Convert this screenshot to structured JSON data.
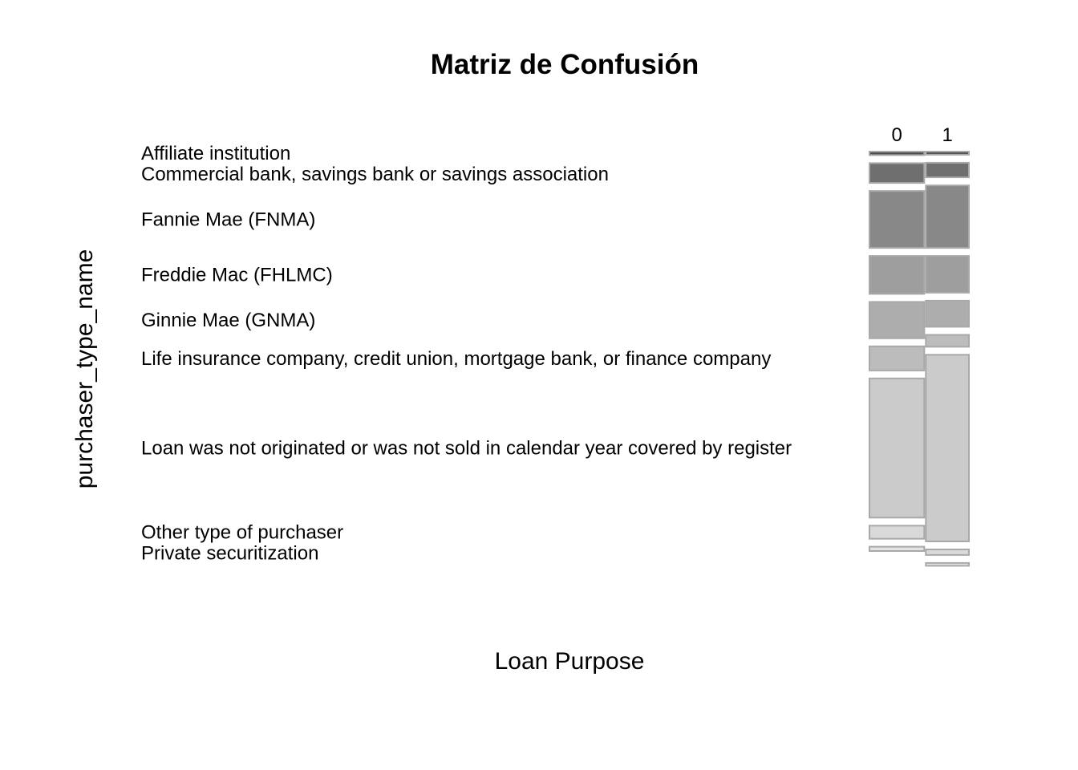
{
  "chart_data": {
    "type": "mosaic",
    "title": "Matriz de Confusión",
    "xlabel": "Loan Purpose",
    "ylabel": "purchaser_type_name",
    "columns": [
      "0",
      "1"
    ],
    "column_proportions": [
      0.56,
      0.44
    ],
    "rows": [
      "Affiliate institution",
      "Commercial bank, savings bank or savings association",
      "Fannie Mae (FNMA)",
      "Freddie Mac (FHLMC)",
      "Ginnie Mae (GNMA)",
      "Life insurance company, credit union, mortgage bank, or finance company",
      "Loan was not originated or was not sold in calendar year covered by register",
      "Other type of purchaser",
      "Private securitization"
    ],
    "row_label_display": [
      "Affiliate institution",
      "Commercial bank, savings bank or savings association",
      "Fannie Mae (FNMA)",
      "Freddie Mac (FHLMC)",
      "Ginnie Mae (GNMA)",
      "Life insurance company, credit union, mortgage bank, or finance company",
      "Loan was not originated or was not sold in calendar year covered by register",
      "Other type of purchaser",
      "Private securitization"
    ],
    "proportions_within_column": {
      "0": [
        0.009,
        0.05,
        0.144,
        0.096,
        0.092,
        0.061,
        0.352,
        0.033,
        0.011
      ],
      "1": [
        0.008,
        0.037,
        0.158,
        0.093,
        0.066,
        0.03,
        0.472,
        0.014,
        0.007
      ]
    },
    "fill_colors": [
      "#4d4d4d",
      "#6f6f6f",
      "#888888",
      "#9e9e9e",
      "#adadad",
      "#bcbcbc",
      "#cbcbcb",
      "#d9d9d9",
      "#e3e3e3"
    ],
    "border_color": "#a9a9a9"
  }
}
